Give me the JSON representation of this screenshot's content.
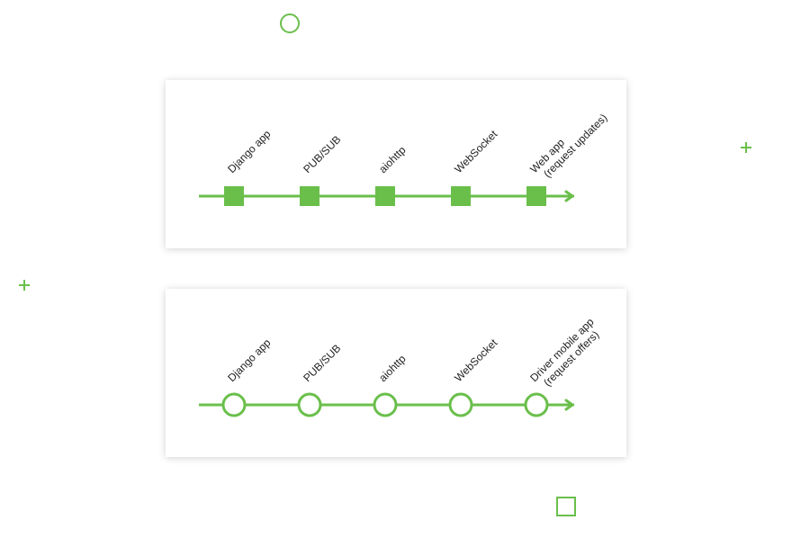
{
  "colors": {
    "accent": "#6abf4b",
    "text": "#1f1f1f",
    "card_bg": "#ffffff"
  },
  "flows": [
    {
      "name": "web-app-flow",
      "node_shape": "square",
      "stages": [
        {
          "lines": [
            "Django app"
          ]
        },
        {
          "lines": [
            "PUB/SUB"
          ]
        },
        {
          "lines": [
            "aiohttp"
          ]
        },
        {
          "lines": [
            "WebSocket"
          ]
        },
        {
          "lines": [
            "Web app",
            "(request updates)"
          ]
        }
      ]
    },
    {
      "name": "driver-app-flow",
      "node_shape": "circle",
      "stages": [
        {
          "lines": [
            "Django app"
          ]
        },
        {
          "lines": [
            "PUB/SUB"
          ]
        },
        {
          "lines": [
            "aiohttp"
          ]
        },
        {
          "lines": [
            "WebSocket"
          ]
        },
        {
          "lines": [
            "Driver mobile app",
            "(request offers)"
          ]
        }
      ]
    }
  ],
  "decorations": [
    "circle-outline",
    "plus-sign",
    "plus-sign",
    "square-outline"
  ]
}
